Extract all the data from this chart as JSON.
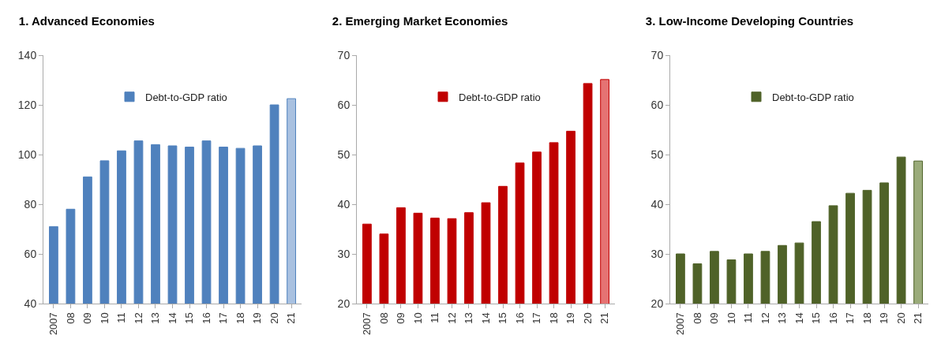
{
  "chart_data": [
    {
      "type": "bar",
      "title": "1. Advanced Economies",
      "categories": [
        "2007",
        "08",
        "09",
        "10",
        "11",
        "12",
        "13",
        "14",
        "15",
        "16",
        "17",
        "18",
        "19",
        "20",
        "21"
      ],
      "series": [
        {
          "name": "Debt-to-GDP ratio",
          "color": "#4f81bd",
          "colors": [
            "#4f81bd",
            "#4f81bd",
            "#4f81bd",
            "#4f81bd",
            "#4f81bd",
            "#4f81bd",
            "#4f81bd",
            "#4f81bd",
            "#4f81bd",
            "#4f81bd",
            "#4f81bd",
            "#4f81bd",
            "#4f81bd",
            "#4f81bd",
            "#a9c1e0"
          ],
          "values": [
            71,
            78,
            91,
            97.5,
            101.5,
            105.5,
            104,
            103.5,
            103,
            105.5,
            103,
            102.5,
            103.5,
            120,
            122.5
          ]
        }
      ],
      "ylim": [
        40,
        140
      ],
      "yticks": [
        40,
        60,
        80,
        100,
        120,
        140
      ],
      "grid": false,
      "legend": "top"
    },
    {
      "type": "bar",
      "title": "2. Emerging Market Economies",
      "categories": [
        "2007",
        "08",
        "09",
        "10",
        "11",
        "12",
        "13",
        "14",
        "15",
        "16",
        "17",
        "18",
        "19",
        "20",
        "21"
      ],
      "series": [
        {
          "name": "Debt-to-GDP ratio",
          "color": "#c00000",
          "colors": [
            "#c00000",
            "#c00000",
            "#c00000",
            "#c00000",
            "#c00000",
            "#c00000",
            "#c00000",
            "#c00000",
            "#c00000",
            "#c00000",
            "#c00000",
            "#c00000",
            "#c00000",
            "#c00000",
            "#e57373"
          ],
          "values": [
            36,
            34,
            39.3,
            38.2,
            37.2,
            37.1,
            38.3,
            40.3,
            43.6,
            48.3,
            50.5,
            52.4,
            54.7,
            64.3,
            65.1
          ]
        }
      ],
      "ylim": [
        20,
        70
      ],
      "yticks": [
        20,
        30,
        40,
        50,
        60,
        70
      ],
      "grid": false,
      "legend": "top"
    },
    {
      "type": "bar",
      "title": "3. Low-Income Developing Countries",
      "categories": [
        "2007",
        "08",
        "09",
        "10",
        "11",
        "12",
        "13",
        "14",
        "15",
        "16",
        "17",
        "18",
        "19",
        "20",
        "21"
      ],
      "series": [
        {
          "name": "Debt-to-GDP ratio",
          "color": "#4f6228",
          "colors": [
            "#4f6228",
            "#4f6228",
            "#4f6228",
            "#4f6228",
            "#4f6228",
            "#4f6228",
            "#4f6228",
            "#4f6228",
            "#4f6228",
            "#4f6228",
            "#4f6228",
            "#4f6228",
            "#4f6228",
            "#4f6228",
            "#9aab7a"
          ],
          "values": [
            30,
            28,
            30.5,
            28.8,
            30,
            30.5,
            31.7,
            32.2,
            36.5,
            39.7,
            42.2,
            42.8,
            44.3,
            49.5,
            48.7
          ]
        }
      ],
      "ylim": [
        20,
        70
      ],
      "yticks": [
        20,
        30,
        40,
        50,
        60,
        70
      ],
      "grid": false,
      "legend": "top"
    }
  ]
}
